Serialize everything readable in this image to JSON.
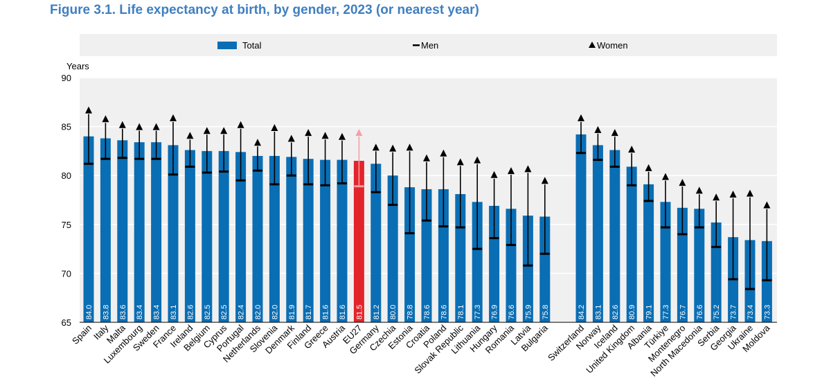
{
  "title": "Figure 3.1. Life expectancy at birth, by gender, 2023 (or nearest year)",
  "chart_data": {
    "type": "bar",
    "title": "Figure 3.1. Life expectancy at birth, by gender, 2023 (or nearest year)",
    "ylabel": "Years",
    "xlabel": "",
    "ylim": [
      65,
      90
    ],
    "yticks": [
      65,
      70,
      75,
      80,
      85,
      90
    ],
    "grid": true,
    "legend": {
      "position": "top",
      "entries": [
        "Total",
        "Men",
        "Women"
      ]
    },
    "highlight": "EU27",
    "colors": {
      "total": "#0a6eb4",
      "highlight": "#e3242b",
      "highlight_marker": "#f4a0a4",
      "marker": "#000000",
      "band": "#f0f0f0",
      "grid": "#ffffff",
      "title": "#3f7fc0"
    },
    "groups": [
      {
        "categories": [
          "Spain",
          "Italy",
          "Malta",
          "Luxembourg",
          "Sweden",
          "France",
          "Ireland",
          "Belgium",
          "Cyprus",
          "Portugal",
          "Netherlands",
          "Slovenia",
          "Denmark",
          "Finland",
          "Greece",
          "Austria",
          "EU27",
          "Germany",
          "Czechia",
          "Estonia",
          "Croatia",
          "Poland",
          "Slovak Republic",
          "Lithuania",
          "Hungary",
          "Romania",
          "Latvia",
          "Bulgaria"
        ],
        "total_labels": [
          "84.0",
          "83.8",
          "83.6",
          "83.4",
          "83.4",
          "83.1",
          "82.6",
          "82.5",
          "82.5",
          "82.4",
          "82.0",
          "82.0",
          "81.9",
          "81.7",
          "81.6",
          "81.6",
          "81.5",
          "81.2",
          "80.0",
          "78.8",
          "78.6",
          "78.6",
          "78.1",
          "77.3",
          "76.9",
          "76.6",
          "75.9",
          "75.8"
        ],
        "men": [
          81.2,
          81.7,
          81.8,
          81.7,
          81.7,
          80.1,
          80.9,
          80.3,
          80.4,
          79.5,
          80.5,
          79.1,
          80.0,
          79.1,
          79.0,
          79.2,
          78.9,
          78.3,
          77.0,
          74.1,
          75.4,
          74.8,
          74.7,
          72.5,
          73.6,
          72.9,
          70.8,
          72.0
        ],
        "women": [
          86.7,
          85.8,
          85.2,
          85.0,
          85.0,
          85.9,
          84.1,
          84.6,
          84.6,
          85.2,
          83.4,
          84.9,
          83.8,
          84.4,
          84.1,
          84.0,
          84.4,
          82.9,
          82.8,
          82.9,
          81.8,
          82.3,
          81.4,
          81.6,
          80.1,
          80.5,
          80.7,
          79.5
        ]
      },
      {
        "categories": [
          "Switzerland",
          "Norway",
          "Iceland",
          "United Kingdom",
          "Albania",
          "Türkiye",
          "Montenegro",
          "North Macedonia",
          "Serbia",
          "Georgia",
          "Ukraine",
          "Moldova"
        ],
        "total_labels": [
          "84.2",
          "83.1",
          "82.6",
          "80.9",
          "79.1",
          "77.3",
          "76.7",
          "76.6",
          "75.2",
          "73.7",
          "73.4",
          "73.3"
        ],
        "men": [
          82.3,
          81.6,
          80.9,
          79.0,
          77.4,
          74.7,
          74.0,
          74.7,
          72.7,
          69.4,
          68.4,
          69.3
        ],
        "women": [
          85.9,
          84.7,
          84.4,
          82.7,
          80.8,
          79.9,
          79.3,
          78.5,
          77.8,
          78.1,
          78.2,
          77.0
        ]
      }
    ]
  }
}
